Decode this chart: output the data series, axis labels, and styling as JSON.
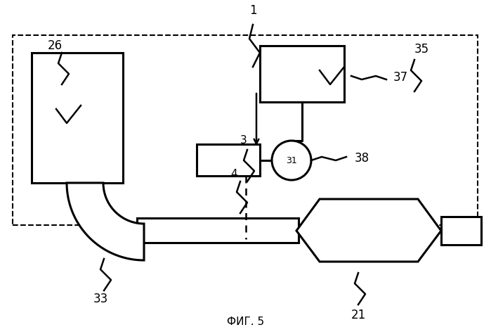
{
  "title": "ФИГ. 5",
  "bg_color": "#ffffff",
  "fig_w": 6.99,
  "fig_h": 4.72,
  "dpi": 100
}
